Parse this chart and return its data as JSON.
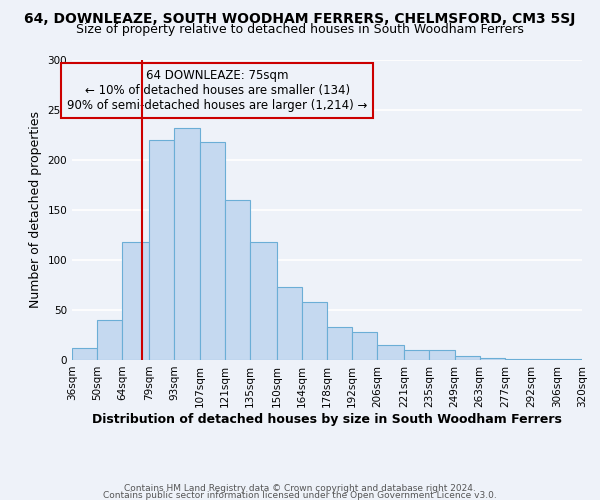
{
  "title": "64, DOWNLEAZE, SOUTH WOODHAM FERRERS, CHELMSFORD, CM3 5SJ",
  "subtitle": "Size of property relative to detached houses in South Woodham Ferrers",
  "xlabel": "Distribution of detached houses by size in South Woodham Ferrers",
  "ylabel": "Number of detached properties",
  "bin_edges": [
    36,
    50,
    64,
    79,
    93,
    107,
    121,
    135,
    150,
    164,
    178,
    192,
    206,
    221,
    235,
    249,
    263,
    277,
    292,
    306,
    320
  ],
  "bar_heights": [
    12,
    40,
    118,
    220,
    232,
    218,
    160,
    118,
    73,
    58,
    33,
    28,
    15,
    10,
    10,
    4,
    2,
    1,
    1,
    1
  ],
  "bar_color": "#c5d9f0",
  "bar_edgecolor": "#6baed6",
  "tick_labels": [
    "36sqm",
    "50sqm",
    "64sqm",
    "79sqm",
    "93sqm",
    "107sqm",
    "121sqm",
    "135sqm",
    "150sqm",
    "164sqm",
    "178sqm",
    "192sqm",
    "206sqm",
    "221sqm",
    "235sqm",
    "249sqm",
    "263sqm",
    "277sqm",
    "292sqm",
    "306sqm",
    "320sqm"
  ],
  "vline_x": 75,
  "vline_color": "#cc0000",
  "annotation_text": "64 DOWNLEAZE: 75sqm\n← 10% of detached houses are smaller (134)\n90% of semi-detached houses are larger (1,214) →",
  "annotation_box_edgecolor": "#cc0000",
  "ylim": [
    0,
    300
  ],
  "yticks": [
    0,
    50,
    100,
    150,
    200,
    250,
    300
  ],
  "footer1": "Contains HM Land Registry data © Crown copyright and database right 2024.",
  "footer2": "Contains public sector information licensed under the Open Government Licence v3.0.",
  "bg_color": "#eef2f9",
  "grid_color": "#ffffff",
  "title_fontsize": 10,
  "subtitle_fontsize": 9,
  "annotation_fontsize": 8.5,
  "axis_label_fontsize": 9,
  "tick_fontsize": 7.5,
  "footer_fontsize": 6.5
}
